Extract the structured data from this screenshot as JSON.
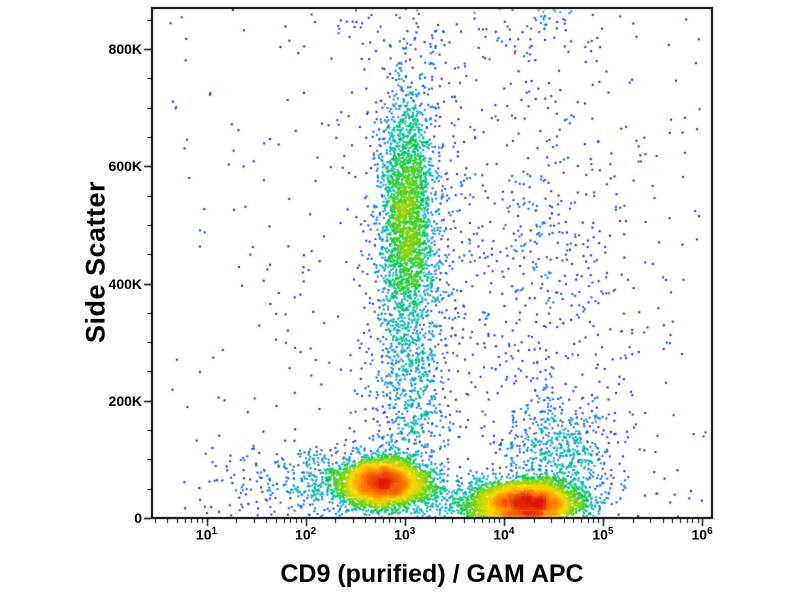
{
  "figure": {
    "background": "#ffffff",
    "frame_color": "#000000"
  },
  "chart_data": {
    "type": "scatter",
    "subtype": "flow-cytometry-density-dot-plot",
    "title": "",
    "xlabel": "CD9 (purified) / GAM APC",
    "ylabel": "Side Scatter",
    "x_scale": "log10",
    "x_log_range": [
      0.45,
      6.1
    ],
    "x_ticks": [
      {
        "exp": 1,
        "base": "10",
        "exp_label": "1"
      },
      {
        "exp": 2,
        "base": "10",
        "exp_label": "2"
      },
      {
        "exp": 3,
        "base": "10",
        "exp_label": "3"
      },
      {
        "exp": 4,
        "base": "10",
        "exp_label": "4"
      },
      {
        "exp": 5,
        "base": "10",
        "exp_label": "5"
      },
      {
        "exp": 6,
        "base": "10",
        "exp_label": "6"
      }
    ],
    "y_range": [
      0,
      870000
    ],
    "y_ticks": [
      {
        "value": 0,
        "label": "0"
      },
      {
        "value": 200000,
        "label": "200K"
      },
      {
        "value": 400000,
        "label": "400K"
      },
      {
        "value": 600000,
        "label": "600K"
      },
      {
        "value": 800000,
        "label": "800K"
      }
    ],
    "y_minor_step": 50000,
    "grid": false,
    "point_size": 2,
    "point_color_low_density": "#1818c8",
    "point_color_high_density": "#dc1400",
    "colormap": [
      {
        "t": 0.0,
        "color": "#1818c8"
      },
      {
        "t": 0.28,
        "color": "#0873e8"
      },
      {
        "t": 0.42,
        "color": "#00b4c8"
      },
      {
        "t": 0.55,
        "color": "#00c850"
      },
      {
        "t": 0.7,
        "color": "#96d400"
      },
      {
        "t": 0.82,
        "color": "#ffdc00"
      },
      {
        "t": 0.92,
        "color": "#ff7800"
      },
      {
        "t": 1.0,
        "color": "#dc1400"
      }
    ],
    "populations": [
      {
        "name": "cd9dim-low-ssc-dense",
        "n": 4500,
        "x_log_mean": 2.78,
        "x_log_sd": 0.22,
        "y_mean": 60000,
        "y_sd": 20000
      },
      {
        "name": "cd9dim-left-tail",
        "n": 500,
        "x_log_mean": 2.45,
        "x_log_sd": 0.4,
        "y_mean": 62000,
        "y_sd": 28000
      },
      {
        "name": "cd9bright-low-ssc-dense",
        "n": 5200,
        "x_log_mean": 4.22,
        "x_log_sd": 0.26,
        "y_mean": 26000,
        "y_sd": 18000
      },
      {
        "name": "cd9bright-upper-tail",
        "n": 700,
        "x_log_mean": 4.55,
        "x_log_sd": 0.28,
        "y_mean": 100000,
        "y_sd": 55000
      },
      {
        "name": "high-ssc-vertical-cluster",
        "n": 2400,
        "x_log_mean": 3.02,
        "x_log_sd": 0.13,
        "y_mean": 510000,
        "y_sd": 105000
      },
      {
        "name": "high-ssc-halo",
        "n": 800,
        "x_log_mean": 3.08,
        "x_log_sd": 0.28,
        "y_mean": 470000,
        "y_sd": 190000
      },
      {
        "name": "mid-ssc-bridge",
        "n": 450,
        "x_log_mean": 3.08,
        "x_log_sd": 0.2,
        "y_mean": 210000,
        "y_sd": 80000
      },
      {
        "name": "right-diffuse-cloud",
        "n": 550,
        "x_log_mean": 4.35,
        "x_log_sd": 0.55,
        "y_mean": 380000,
        "y_sd": 210000
      },
      {
        "name": "bottom-bridge",
        "n": 300,
        "x_log_mean": 3.55,
        "x_log_sd": 0.35,
        "y_mean": 30000,
        "y_sd": 25000
      },
      {
        "name": "top-edge-scatter",
        "n": 200,
        "x_log_mean": 3.6,
        "x_log_sd": 0.7,
        "y_mean": 900000,
        "y_sd": 70000
      },
      {
        "name": "top-edge-dense-segment",
        "n": 90,
        "x_log_mean": 4.42,
        "x_log_sd": 0.1,
        "y_mean": 890000,
        "y_sd": 40000
      },
      {
        "name": "left-sparse",
        "n": 140,
        "x_log_mean": 1.8,
        "x_log_sd": 0.5,
        "y_mean": 55000,
        "y_sd": 35000
      },
      {
        "name": "background-scatter",
        "type": "uniform",
        "n": 380,
        "x_log_range": [
          0.6,
          6.05
        ],
        "y_range": [
          0,
          865000
        ]
      }
    ]
  }
}
